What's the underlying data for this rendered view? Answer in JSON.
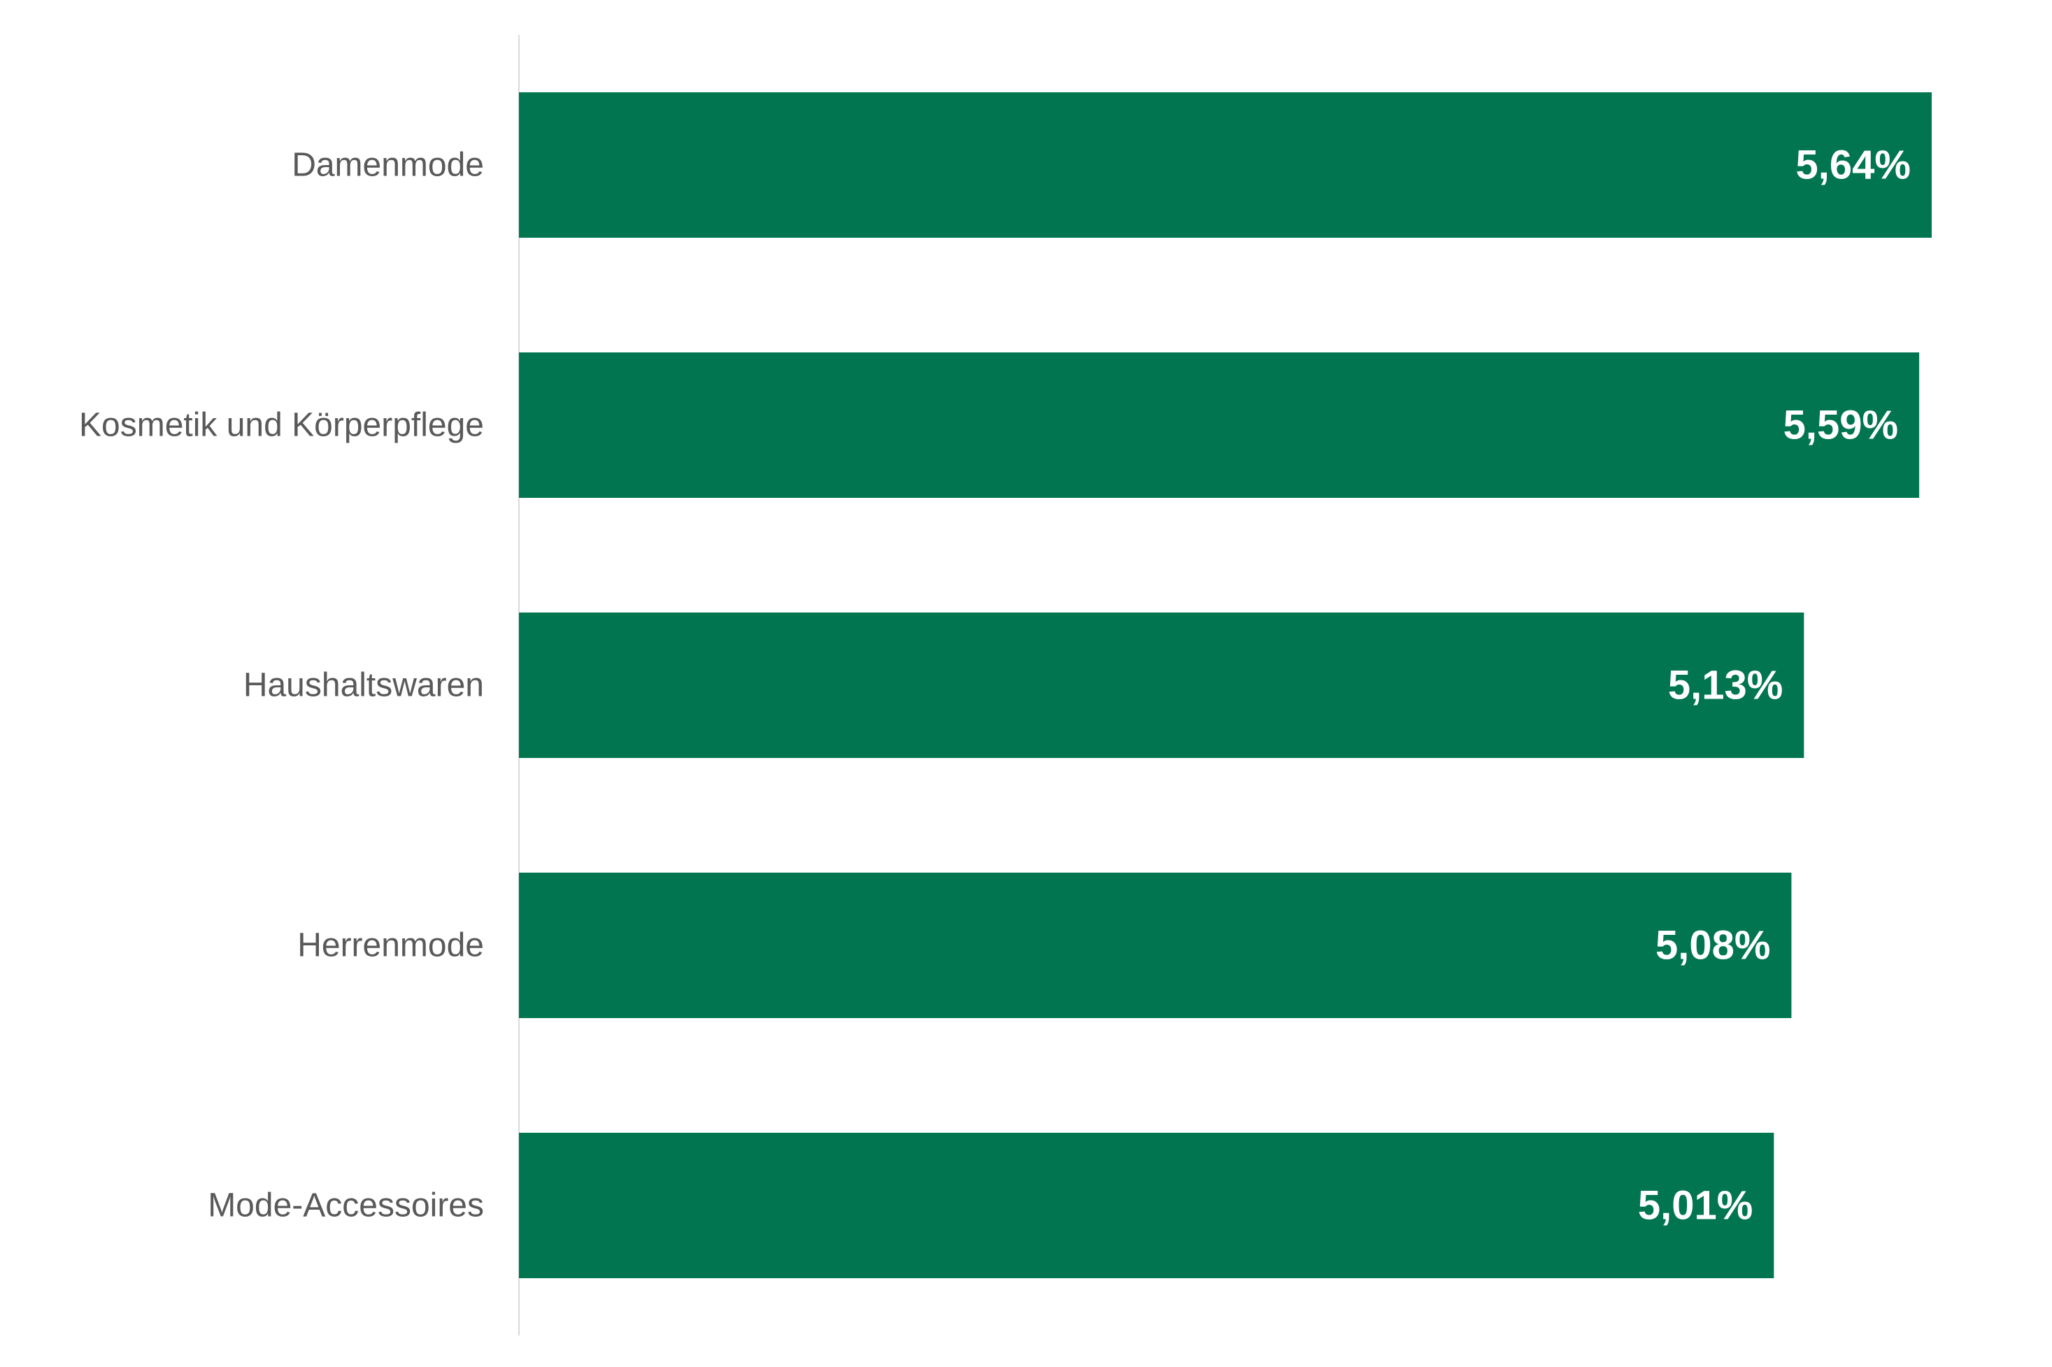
{
  "chart_data": {
    "type": "bar",
    "orientation": "horizontal",
    "title": "",
    "xlabel": "",
    "ylabel": "",
    "categories": [
      "Damenmode",
      "Kosmetik und Körperpflege",
      "Haushaltswaren",
      "Herrenmode",
      "Mode-Accessoires"
    ],
    "values": [
      5.64,
      5.59,
      5.13,
      5.08,
      5.01
    ],
    "value_labels": [
      "5,64%",
      "5,59%",
      "5,13%",
      "5,08%",
      "5,01%"
    ],
    "unit": "%",
    "xlim": [
      0,
      5.64
    ],
    "grid": false,
    "legend": "none",
    "bar_color": "#00754F",
    "axis_color": "#D9D9D9",
    "category_label_color": "#595959",
    "value_label_color": "#FFFFFF"
  }
}
